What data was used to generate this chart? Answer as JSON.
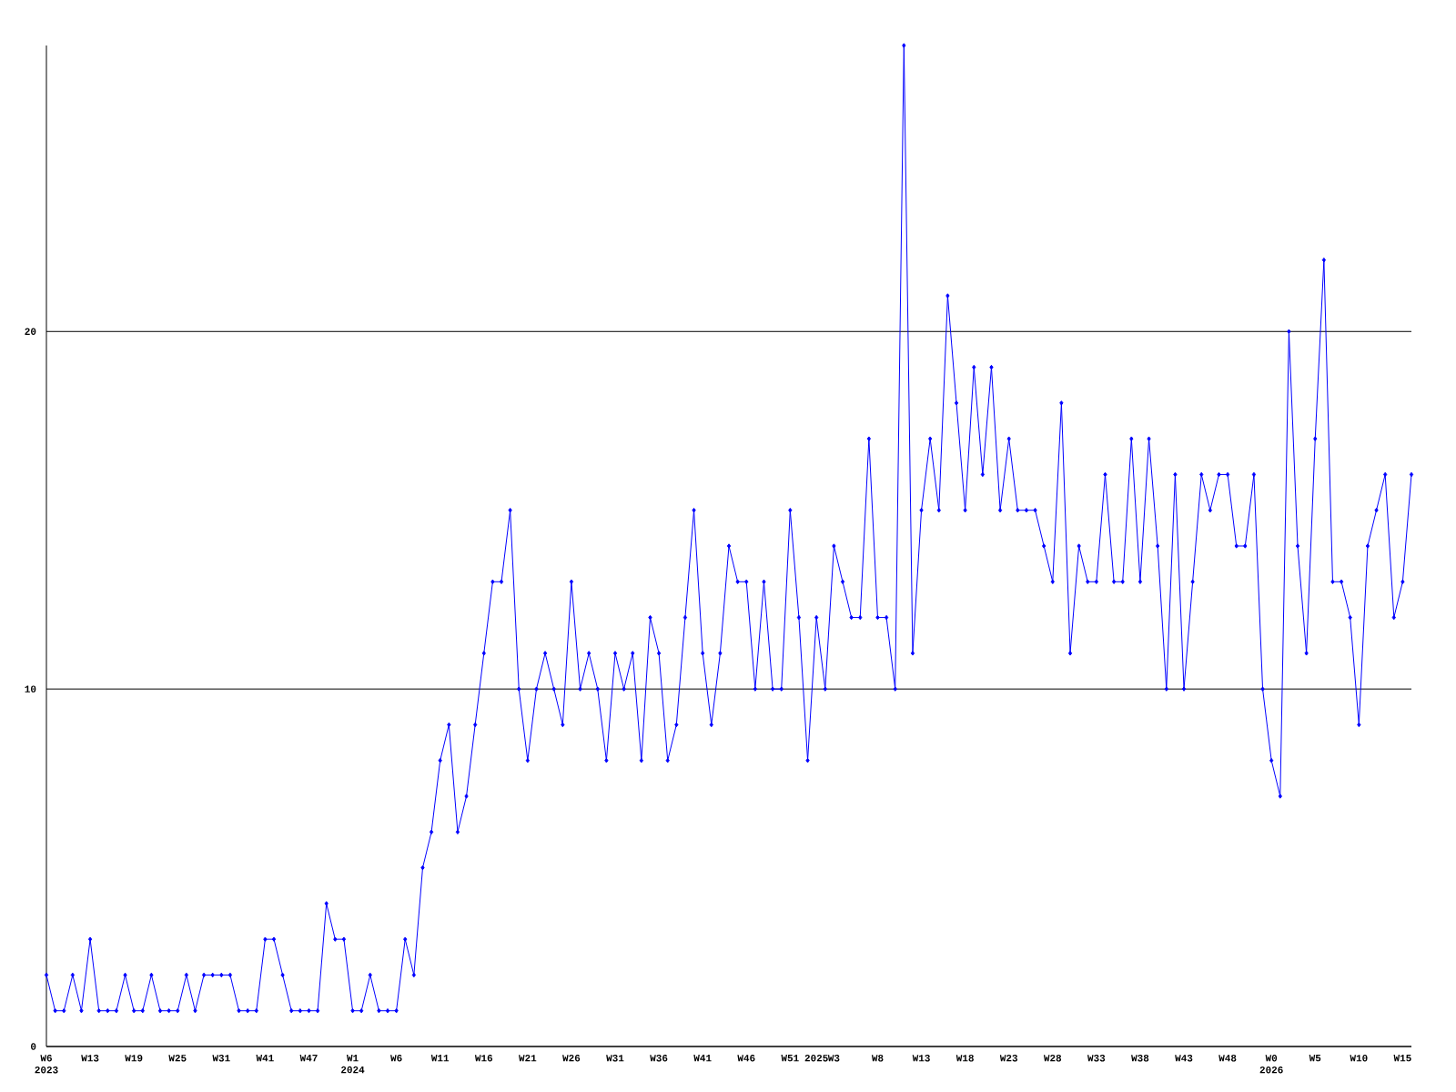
{
  "chart_data": {
    "type": "line",
    "color": "#0000ff",
    "marker": "diamond",
    "grid": "y",
    "categories": [
      "W6 2023",
      null,
      null,
      null,
      null,
      "W13",
      null,
      null,
      null,
      null,
      "W19",
      null,
      null,
      null,
      null,
      "W25",
      null,
      null,
      null,
      null,
      "W31",
      null,
      null,
      null,
      null,
      "W41",
      null,
      null,
      null,
      null,
      "W47",
      null,
      null,
      null,
      null,
      "W1 2024",
      null,
      null,
      null,
      null,
      "W6",
      null,
      null,
      null,
      null,
      "W11",
      null,
      null,
      null,
      null,
      "W16",
      null,
      null,
      null,
      null,
      "W21",
      null,
      null,
      null,
      null,
      "W26",
      null,
      null,
      null,
      null,
      "W31",
      null,
      null,
      null,
      null,
      "W36",
      null,
      null,
      null,
      null,
      "W41",
      null,
      null,
      null,
      null,
      "W46",
      null,
      null,
      null,
      null,
      "W51",
      null,
      null,
      "2025",
      null,
      "W3",
      null,
      null,
      null,
      null,
      "W8",
      null,
      null,
      null,
      null,
      "W13",
      null,
      null,
      null,
      null,
      "W18",
      null,
      null,
      null,
      null,
      "W23",
      null,
      null,
      null,
      null,
      "W28",
      null,
      null,
      null,
      null,
      "W33",
      null,
      null,
      null,
      null,
      "W38",
      null,
      null,
      null,
      null,
      "W43",
      null,
      null,
      null,
      null,
      "W48",
      null,
      null,
      null,
      null,
      "W0 2026",
      null,
      null,
      null,
      null,
      "W5",
      null,
      null,
      null,
      null,
      "W10",
      null,
      null,
      null,
      null,
      "W15",
      null
    ],
    "values": [
      2,
      1,
      1,
      2,
      1,
      3,
      1,
      1,
      1,
      2,
      1,
      1,
      2,
      1,
      1,
      1,
      2,
      1,
      2,
      2,
      2,
      2,
      1,
      1,
      1,
      3,
      3,
      2,
      1,
      1,
      1,
      1,
      4,
      3,
      3,
      1,
      1,
      2,
      1,
      1,
      1,
      3,
      2,
      5,
      6,
      8,
      9,
      6,
      7,
      9,
      11,
      13,
      13,
      15,
      10,
      8,
      10,
      11,
      10,
      9,
      13,
      10,
      11,
      10,
      8,
      11,
      10,
      11,
      8,
      12,
      11,
      8,
      9,
      12,
      15,
      11,
      9,
      11,
      14,
      13,
      13,
      10,
      13,
      10,
      10,
      15,
      12,
      8,
      12,
      10,
      14,
      13,
      12,
      12,
      17,
      12,
      12,
      10,
      28,
      11,
      15,
      17,
      15,
      21,
      18,
      15,
      19,
      16,
      19,
      15,
      17,
      15,
      15,
      15,
      14,
      13,
      18,
      11,
      14,
      13,
      13,
      16,
      13,
      13,
      17,
      13,
      17,
      14,
      10,
      16,
      10,
      13,
      16,
      15,
      16,
      16,
      14,
      14,
      16,
      10,
      8,
      7,
      20,
      14,
      11,
      17,
      22,
      13,
      13,
      12,
      9,
      14,
      15,
      16,
      12,
      13,
      16
    ],
    "ylim": [
      0,
      28
    ],
    "yticks": [
      0,
      10,
      20
    ]
  }
}
